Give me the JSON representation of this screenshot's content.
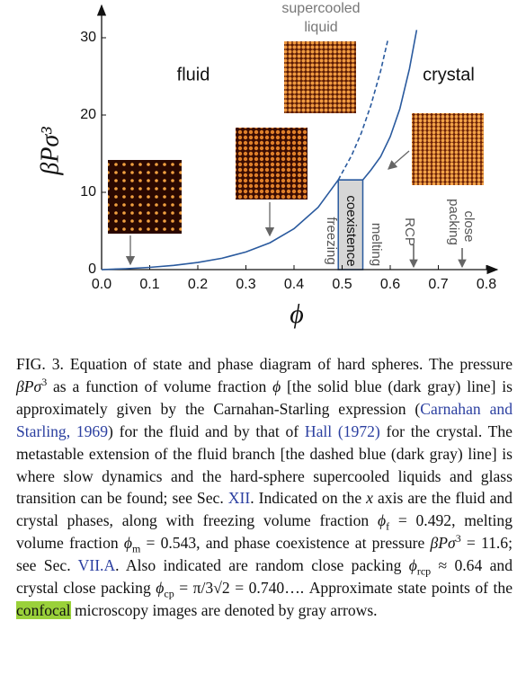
{
  "chart_data": {
    "type": "line",
    "xlabel": "ϕ",
    "ylabel": "βPσ³",
    "xlim": [
      0,
      0.82
    ],
    "ylim": [
      0,
      34
    ],
    "xticks": [
      {
        "value": 0,
        "label": "0.0"
      },
      0.1,
      0.2,
      0.3,
      0.4,
      0.5,
      0.6,
      0.7,
      0.8
    ],
    "yticks": [
      0,
      10,
      20,
      30
    ],
    "series": [
      {
        "color": "#2a5a9e",
        "style": "solid",
        "x": [
          0,
          0.05,
          0.1,
          0.15,
          0.2,
          0.25,
          0.3,
          0.35,
          0.4,
          0.45,
          0.492
        ],
        "y": [
          0,
          0.117,
          0.29,
          0.545,
          0.919,
          1.47,
          2.28,
          3.48,
          5.29,
          8.06,
          11.6
        ]
      },
      {
        "color": "#2a5a9e",
        "style": "solid",
        "x": [
          0.492,
          0.543
        ],
        "y": [
          11.6,
          11.6
        ]
      },
      {
        "color": "#2a5a9e",
        "style": "solid",
        "x": [
          0.543,
          0.56,
          0.58,
          0.6,
          0.62,
          0.64,
          0.655
        ],
        "y": [
          11.6,
          12.9,
          14.6,
          17.2,
          20.8,
          26,
          31
        ]
      },
      {
        "color": "#2a5a9e",
        "style": "dashed",
        "x": [
          0.492,
          0.52,
          0.54,
          0.56,
          0.58,
          0.595
        ],
        "y": [
          11.6,
          14.8,
          17.7,
          21.3,
          25.7,
          29.7
        ]
      }
    ],
    "annotations": {
      "fluid": "fluid",
      "crystal": "crystal",
      "supercooled": [
        "supercooled",
        "liquid"
      ],
      "coexistence": "coexistence",
      "freezing": "freezing",
      "melting": "melting",
      "rcp": "RCP",
      "close_packing": [
        "close",
        "packing"
      ]
    }
  },
  "caption": [
    {
      "kind": "text",
      "text": "FIG. 3.  Equation of state and phase diagram of hard spheres. The pressure "
    },
    {
      "kind": "italic",
      "text": "βPσ"
    },
    {
      "kind": "sup",
      "text": "3"
    },
    {
      "kind": "text",
      "text": " as a function of volume fraction "
    },
    {
      "kind": "italic",
      "text": "ϕ"
    },
    {
      "kind": "text",
      "text": " [the solid blue (dark gray) line] is approximately given by the Carnahan-Starling expression ("
    },
    {
      "kind": "link",
      "text": "Carnahan and Starling, 1969"
    },
    {
      "kind": "text",
      "text": ") for the fluid and by that of "
    },
    {
      "kind": "link",
      "text": "Hall (1972)"
    },
    {
      "kind": "text",
      "text": " for the crystal. The metastable extension of the fluid branch [the dashed blue (dark gray) line] is where slow dynamics and the hard-sphere supercooled liquids and glass transition can be found; see Sec. "
    },
    {
      "kind": "link",
      "text": "XII"
    },
    {
      "kind": "text",
      "text": ". Indicated on the "
    },
    {
      "kind": "italic",
      "text": "x"
    },
    {
      "kind": "text",
      "text": " axis are the fluid and crystal phases, along with freezing volume fraction "
    },
    {
      "kind": "italic",
      "text": "ϕ"
    },
    {
      "kind": "sub",
      "text": "f"
    },
    {
      "kind": "text",
      "text": " = 0.492, melting volume fraction "
    },
    {
      "kind": "italic",
      "text": "ϕ"
    },
    {
      "kind": "sub",
      "text": "m"
    },
    {
      "kind": "text",
      "text": " = 0.543, and phase coexistence at pressure "
    },
    {
      "kind": "italic",
      "text": "βPσ"
    },
    {
      "kind": "sup",
      "text": "3"
    },
    {
      "kind": "text",
      "text": " = 11.6; see Sec. "
    },
    {
      "kind": "link",
      "text": "VII.A"
    },
    {
      "kind": "text",
      "text": ". Also indicated are random close packing "
    },
    {
      "kind": "italic",
      "text": "ϕ"
    },
    {
      "kind": "sub",
      "text": "rcp"
    },
    {
      "kind": "text",
      "text": " ≈ 0.64 and crystal close packing "
    },
    {
      "kind": "italic",
      "text": "ϕ"
    },
    {
      "kind": "sub",
      "text": "cp"
    },
    {
      "kind": "text",
      "text": " = π/3√2 = 0.740…. Approximate state points of the "
    },
    {
      "kind": "mark",
      "text": "confocal"
    },
    {
      "kind": "text",
      "text": " microscopy images are denoted by gray arrows."
    }
  ]
}
